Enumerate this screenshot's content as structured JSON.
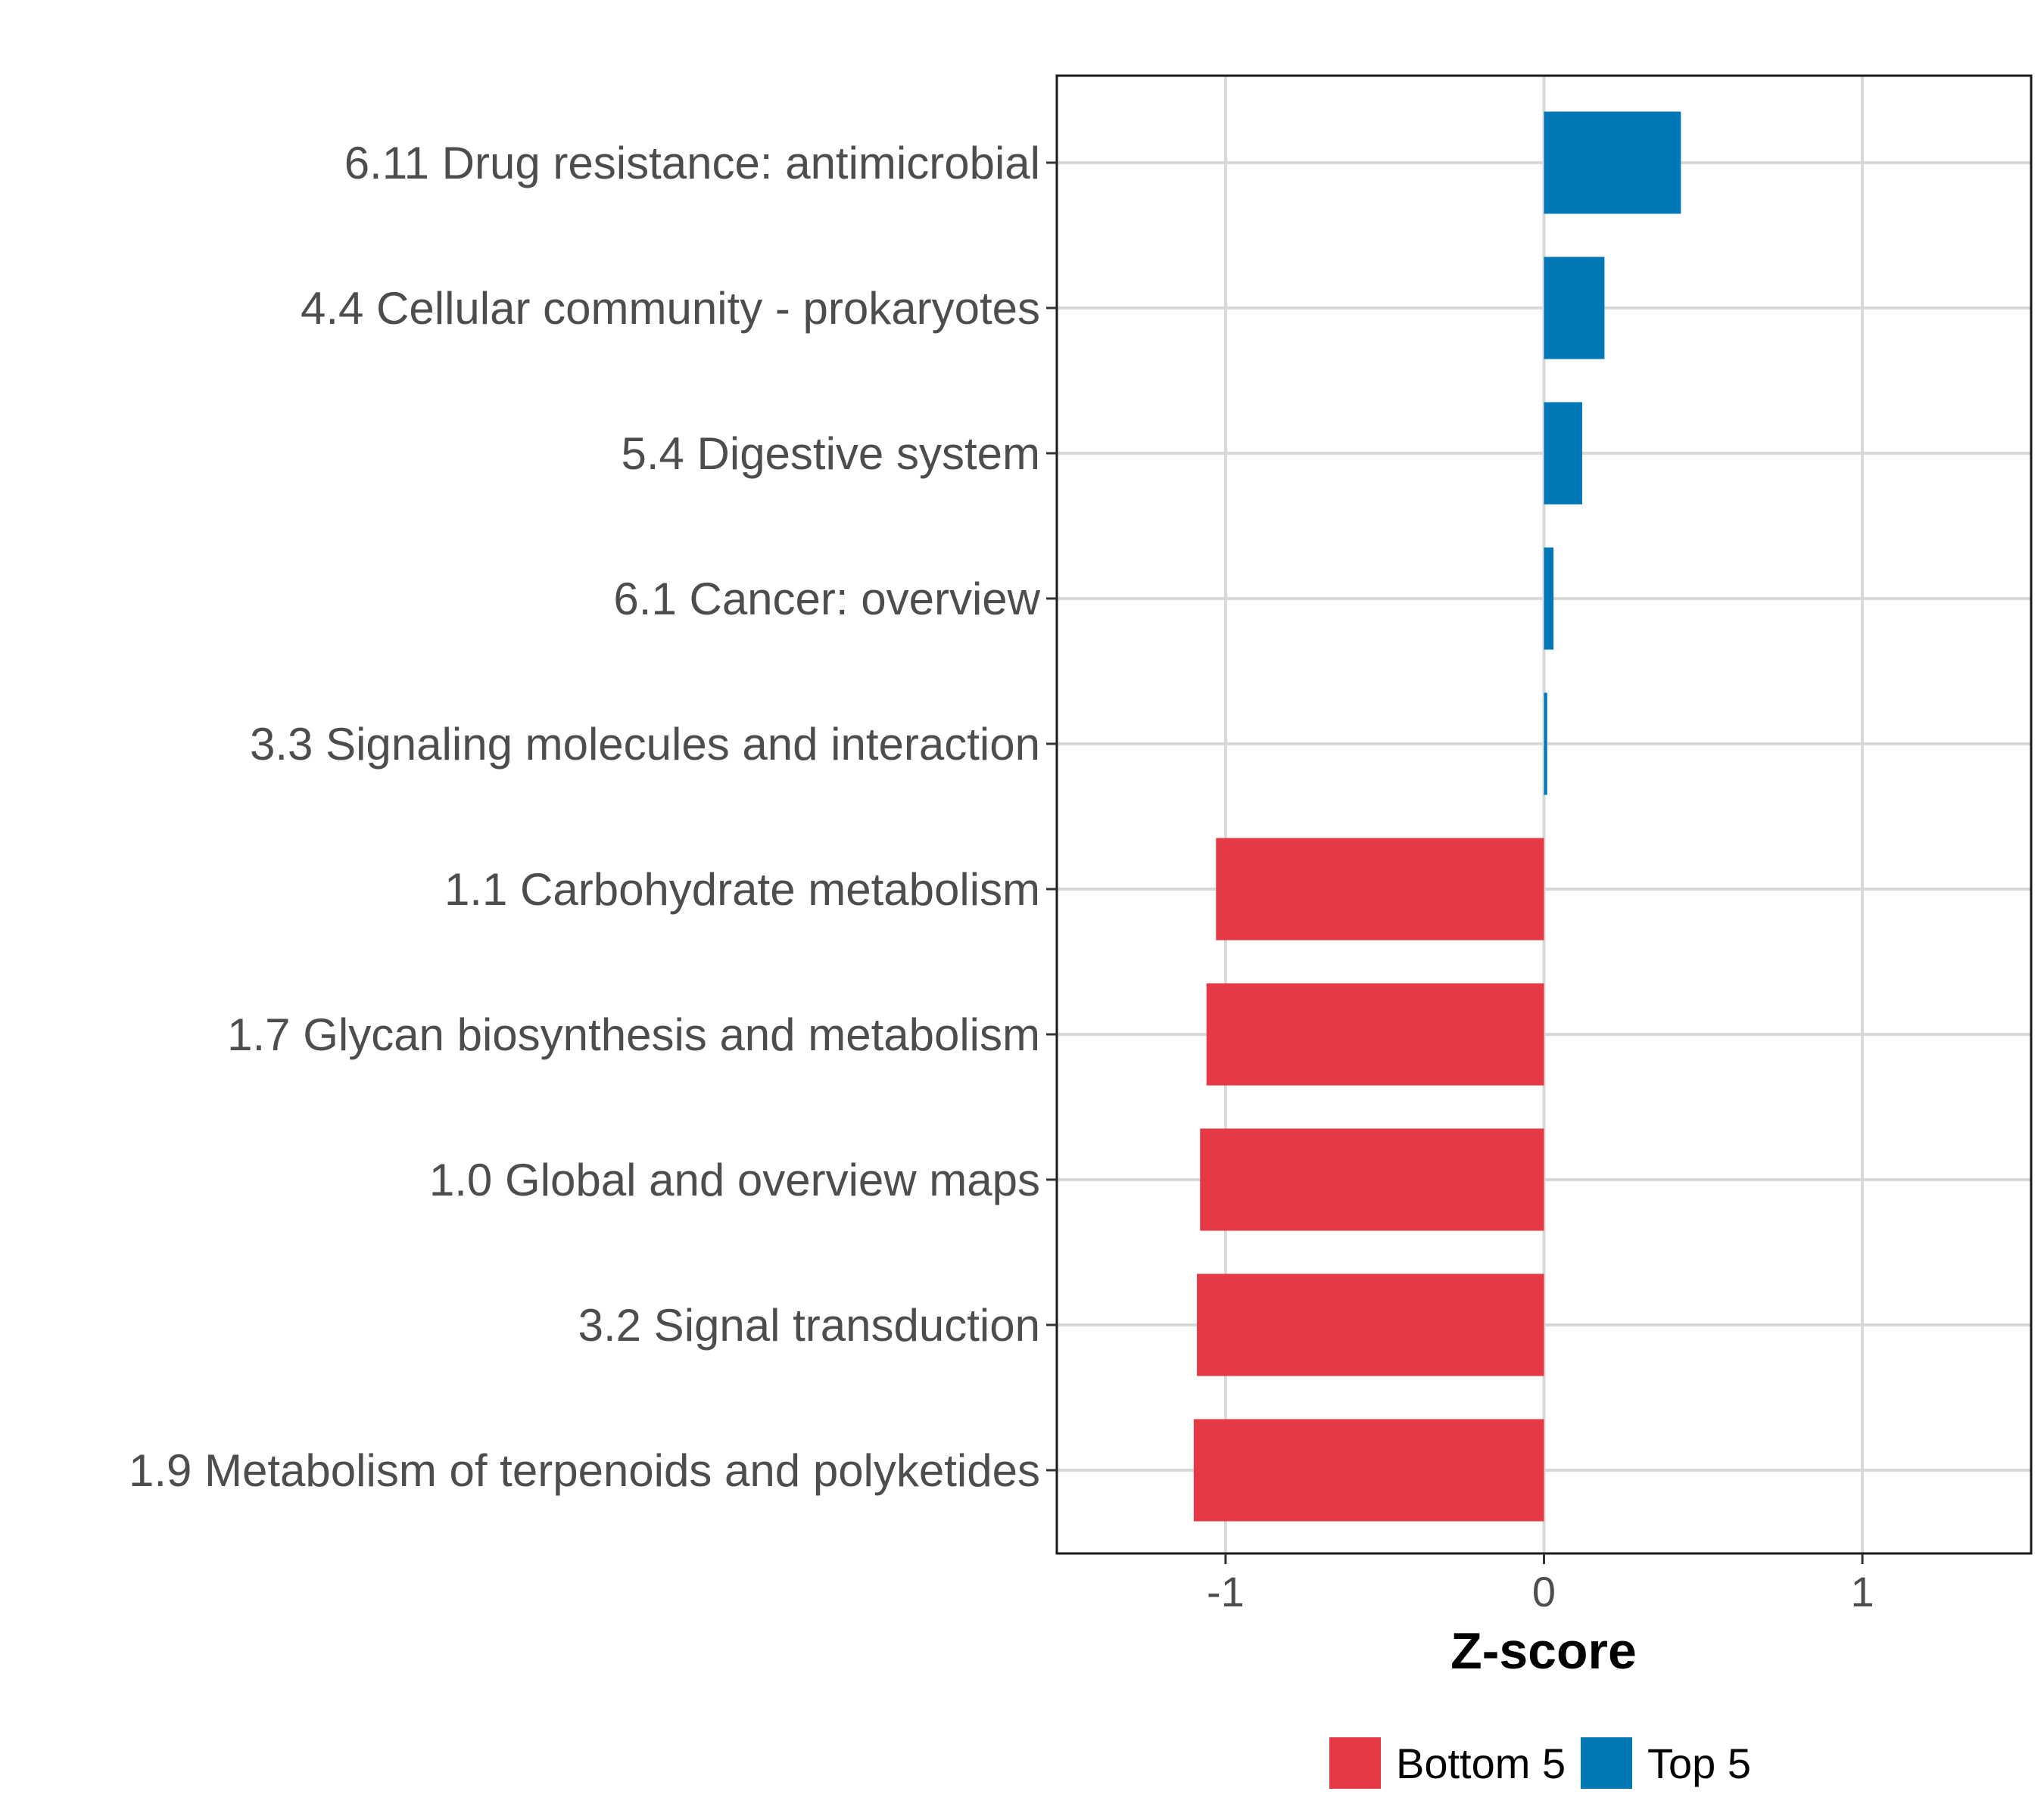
{
  "chart_data": {
    "type": "bar",
    "orientation": "horizontal",
    "categories": [
      "6.11 Drug resistance: antimicrobial",
      "4.4 Cellular community - prokaryotes",
      "5.4 Digestive system",
      "6.1 Cancer: overview",
      "3.3 Signaling molecules and interaction",
      "1.1 Carbohydrate metabolism",
      "1.7 Glycan biosynthesis and metabolism",
      "1.0 Global and overview maps",
      "3.2 Signal transduction",
      "1.9 Metabolism of terpenoids and polyketides"
    ],
    "values": [
      0.43,
      0.19,
      0.12,
      0.03,
      0.01,
      -1.03,
      -1.06,
      -1.08,
      -1.09,
      -1.1
    ],
    "groups": [
      "Top 5",
      "Top 5",
      "Top 5",
      "Top 5",
      "Top 5",
      "Bottom 5",
      "Bottom 5",
      "Bottom 5",
      "Bottom 5",
      "Bottom 5"
    ],
    "xlabel": "Z-score",
    "ylabel": "",
    "xlim": [
      -1.53,
      1.53
    ],
    "xticks": [
      -1,
      0,
      1
    ],
    "xtick_labels": [
      "-1",
      "0",
      "1"
    ],
    "grid": true,
    "legend": {
      "position": "bottom",
      "entries": [
        {
          "label": "Bottom 5",
          "color": "#e63946"
        },
        {
          "label": "Top 5",
          "color": "#0077b6"
        }
      ]
    },
    "colors": {
      "Bottom 5": "#e63946",
      "Top 5": "#0077b6"
    }
  }
}
